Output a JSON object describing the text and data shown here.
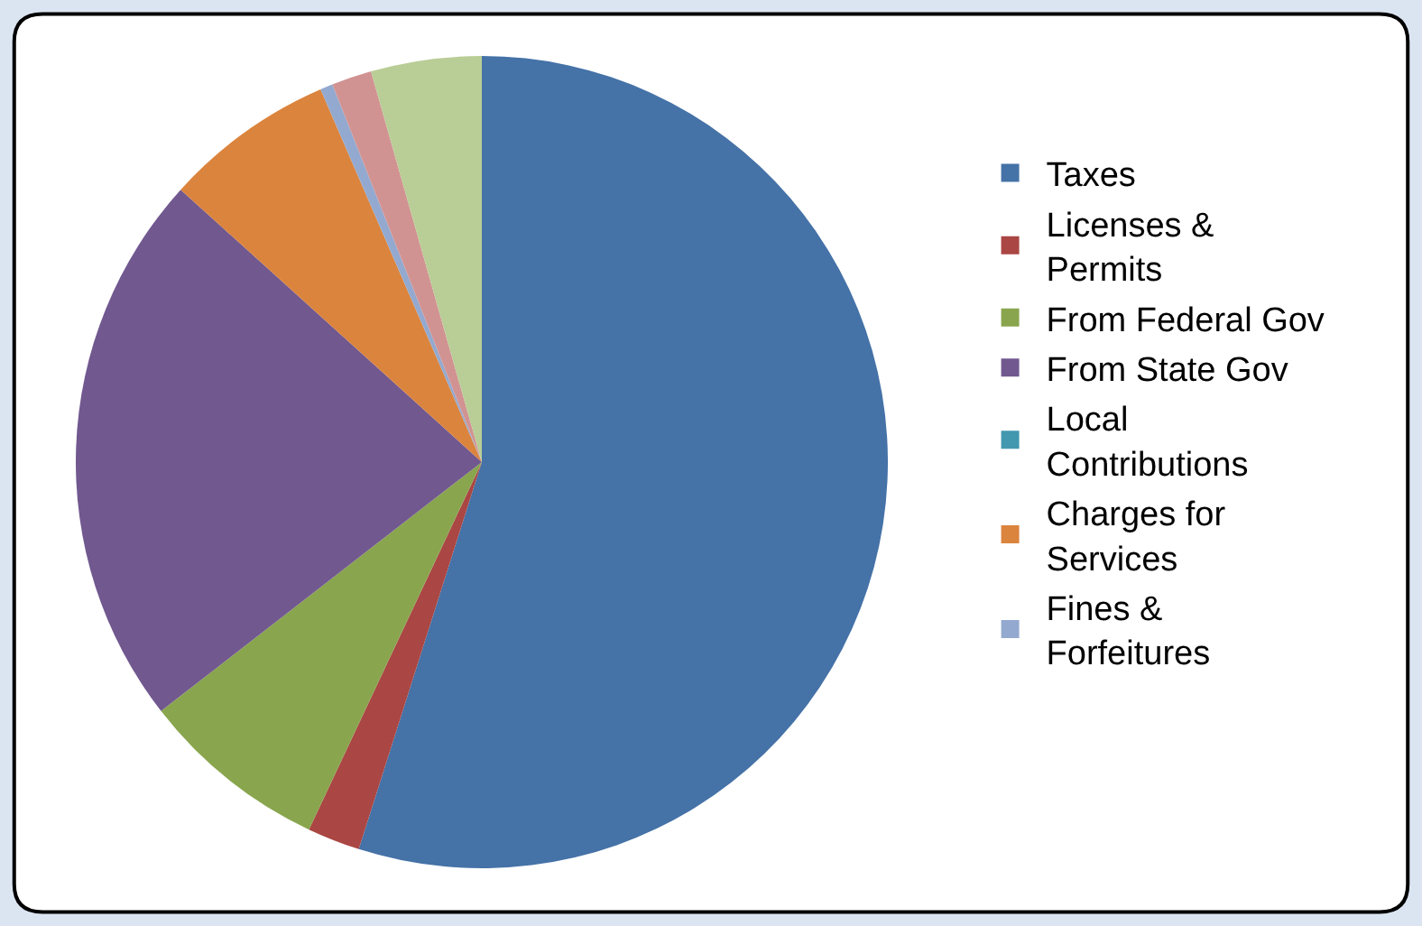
{
  "chart_data": {
    "type": "pie",
    "categories": [
      "Taxes",
      "Licenses & Permits",
      "From Federal Gov",
      "From State Gov",
      "Local Contributions",
      "Charges for Services",
      "Fines & Forfeitures",
      null,
      null
    ],
    "values": [
      54.9,
      2.1,
      7.5,
      22.2,
      0,
      6.8,
      0.5,
      1.6,
      4.4
    ],
    "colors": [
      "#4572a7",
      "#aa4643",
      "#89a54e",
      "#71588f",
      "#4198af",
      "#db843d",
      "#93a9cf",
      "#d19392",
      "#b9cd96"
    ],
    "legend": "right"
  }
}
